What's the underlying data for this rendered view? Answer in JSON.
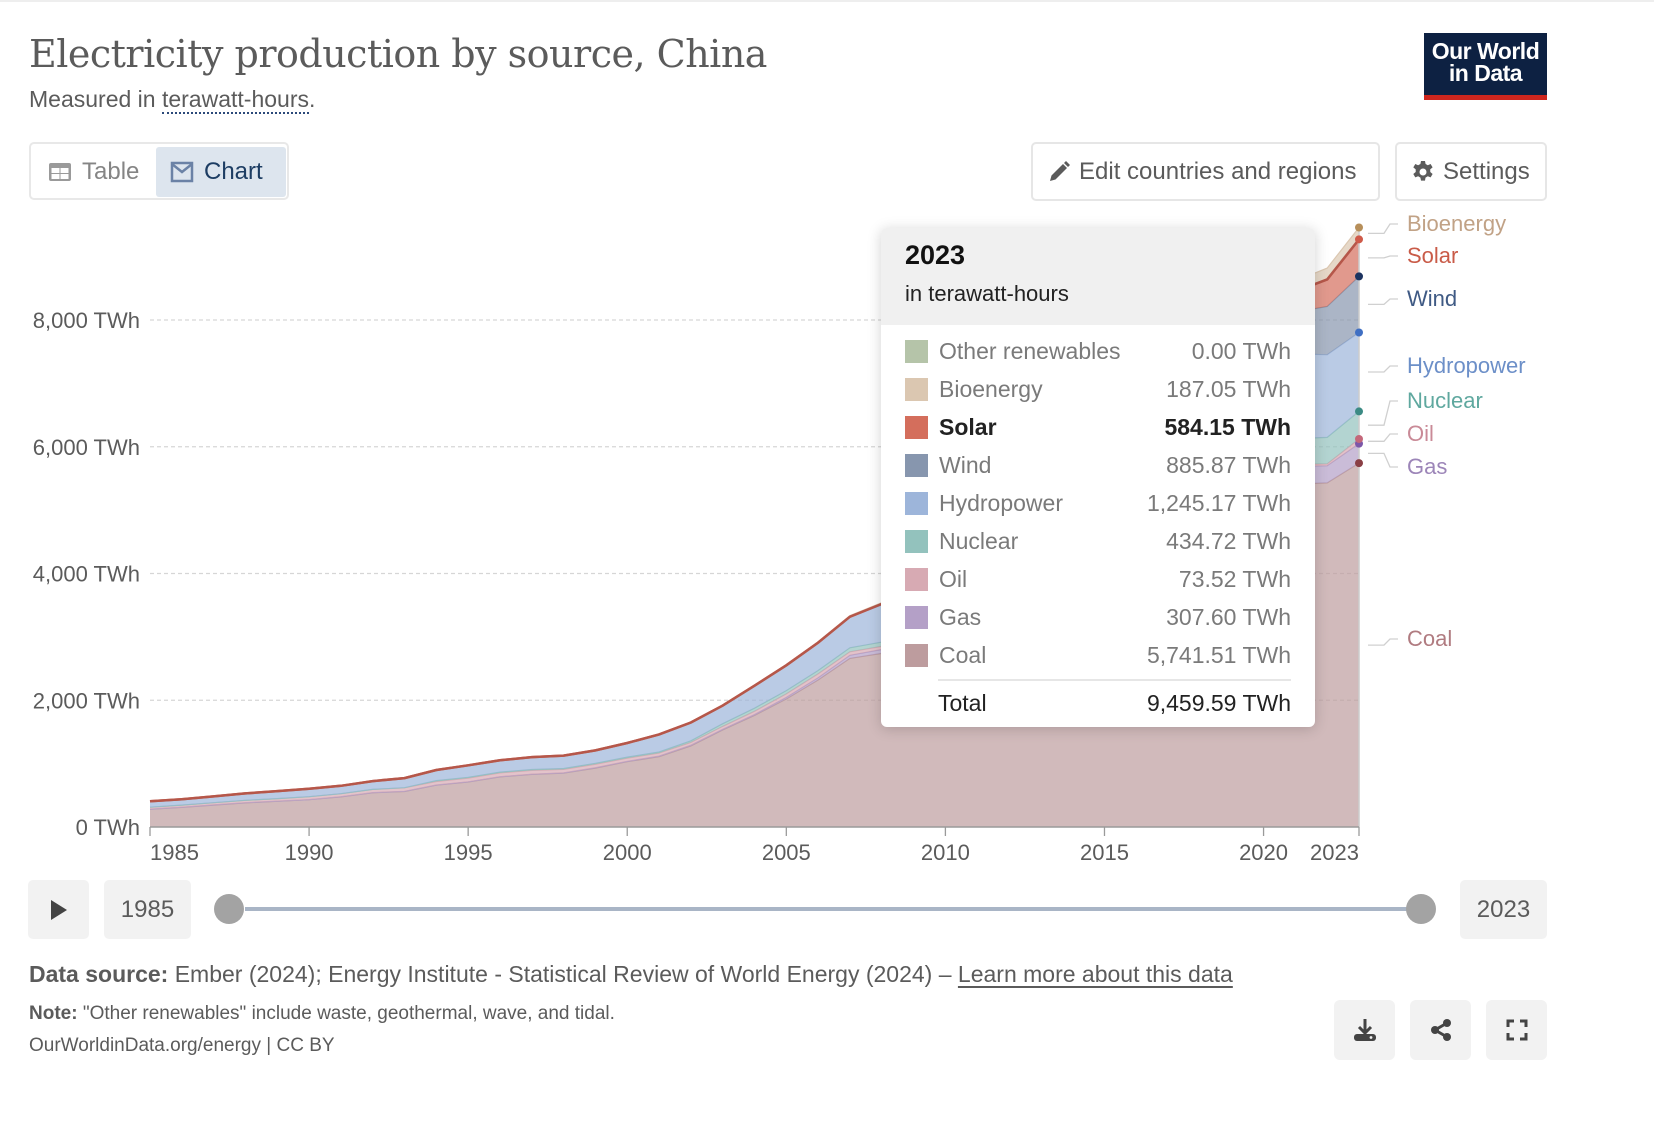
{
  "header": {
    "title": "Electricity production by source, China",
    "subtitle_prefix": "Measured in ",
    "subtitle_unit": "terawatt-hours",
    "subtitle_suffix": ".",
    "logo_line1": "Our World",
    "logo_line2": "in Data"
  },
  "tabs": [
    {
      "label": "Table",
      "icon": "table-icon",
      "active": false
    },
    {
      "label": "Chart",
      "icon": "chart-icon",
      "active": true
    }
  ],
  "controls": {
    "edit_label": "Edit countries and regions",
    "settings_label": "Settings"
  },
  "tooltip": {
    "year": "2023",
    "unit": "in terawatt-hours",
    "rows": [
      {
        "name": "Other renewables",
        "value": "0.00 TWh",
        "color": "#b5c4a9",
        "bold": false
      },
      {
        "name": "Bioenergy",
        "value": "187.05 TWh",
        "color": "#dbc7b1",
        "bold": false
      },
      {
        "name": "Solar",
        "value": "584.15 TWh",
        "color": "#d46e5c",
        "bold": true
      },
      {
        "name": "Wind",
        "value": "885.87 TWh",
        "color": "#8796ae",
        "bold": false
      },
      {
        "name": "Hydropower",
        "value": "1,245.17 TWh",
        "color": "#9db5da",
        "bold": false
      },
      {
        "name": "Nuclear",
        "value": "434.72 TWh",
        "color": "#93c2bd",
        "bold": false
      },
      {
        "name": "Oil",
        "value": "73.52 TWh",
        "color": "#d7aab3",
        "bold": false
      },
      {
        "name": "Gas",
        "value": "307.60 TWh",
        "color": "#b4a0c7",
        "bold": false
      },
      {
        "name": "Coal",
        "value": "5,741.51 TWh",
        "color": "#bd9c9e",
        "bold": false
      }
    ],
    "total_label": "Total",
    "total_value": "9,459.59 TWh"
  },
  "timeline": {
    "start_year": "1985",
    "end_year": "2023",
    "range_start": 1985,
    "range_end": 2023
  },
  "footer": {
    "source_label": "Data source:",
    "source_text": " Ember (2024); Energy Institute - Statistical Review of World Energy (2024) – ",
    "learn_more": "Learn more about this data",
    "note_label": "Note:",
    "note_text": " \"Other renewables\" include waste, geothermal, wave, and tidal.",
    "site": "OurWorldinData.org/energy | CC BY"
  },
  "chart_data": {
    "type": "area",
    "stacked": true,
    "title": "Electricity production by source, China",
    "subtitle": "Measured in terawatt-hours.",
    "xlabel": "",
    "ylabel": "",
    "unit": "TWh",
    "xlim": [
      1985,
      2023
    ],
    "ylim": [
      0,
      9500
    ],
    "x_ticks": [
      "1985",
      "1990",
      "1995",
      "2000",
      "2005",
      "2010",
      "2015",
      "2020",
      "2023"
    ],
    "y_ticks": [
      "0 TWh",
      "2,000 TWh",
      "4,000 TWh",
      "6,000 TWh",
      "8,000 TWh"
    ],
    "y_tick_values": [
      0,
      2000,
      4000,
      6000,
      8000
    ],
    "grid": "horizontal-dashed",
    "legend": "right-inline-labels",
    "x": [
      1985,
      1986,
      1987,
      1988,
      1989,
      1990,
      1991,
      1992,
      1993,
      1994,
      1995,
      1996,
      1997,
      1998,
      1999,
      2000,
      2001,
      2002,
      2003,
      2004,
      2005,
      2006,
      2007,
      2008,
      2009,
      2010,
      2011,
      2012,
      2013,
      2014,
      2015,
      2016,
      2017,
      2018,
      2019,
      2020,
      2021,
      2022,
      2023
    ],
    "series": [
      {
        "name": "Coal",
        "color": "#bd9c9e",
        "label_color": "#b07b80",
        "values": [
          280,
          310,
          345,
          380,
          405,
          430,
          475,
          540,
          560,
          660,
          710,
          790,
          830,
          850,
          930,
          1030,
          1110,
          1280,
          1530,
          1760,
          2020,
          2320,
          2660,
          2740,
          2910,
          3250,
          3720,
          3810,
          4150,
          4210,
          4110,
          4240,
          4500,
          4780,
          4850,
          4920,
          5410,
          5430,
          5741.51
        ]
      },
      {
        "name": "Gas",
        "color": "#b4a0c7",
        "label_color": "#9c85b8",
        "values": [
          3,
          3,
          3,
          3,
          3,
          3,
          3,
          3,
          3,
          3,
          3,
          3,
          3,
          4,
          5,
          6,
          8,
          10,
          12,
          15,
          25,
          35,
          50,
          60,
          70,
          80,
          110,
          120,
          130,
          130,
          180,
          190,
          200,
          220,
          240,
          250,
          280,
          270,
          307.6
        ]
      },
      {
        "name": "Oil",
        "color": "#d7aab3",
        "label_color": "#c98a97",
        "values": [
          30,
          32,
          35,
          38,
          40,
          45,
          48,
          50,
          55,
          55,
          58,
          60,
          60,
          55,
          55,
          50,
          48,
          45,
          45,
          50,
          55,
          60,
          55,
          50,
          45,
          40,
          35,
          30,
          25,
          25,
          25,
          25,
          25,
          25,
          25,
          25,
          30,
          30,
          73.52
        ]
      },
      {
        "name": "Nuclear",
        "color": "#93c2bd",
        "label_color": "#5fa89f",
        "values": [
          0,
          0,
          0,
          0,
          0,
          0,
          0,
          0,
          2,
          14,
          13,
          14,
          14,
          14,
          15,
          17,
          17,
          25,
          43,
          50,
          53,
          55,
          62,
          68,
          70,
          74,
          87,
          98,
          112,
          133,
          171,
          213,
          248,
          295,
          348,
          366,
          408,
          418,
          434.72
        ]
      },
      {
        "name": "Hydropower",
        "color": "#9db5da",
        "label_color": "#6c8fc8",
        "values": [
          92,
          94,
          100,
          109,
          118,
          126,
          124,
          131,
          151,
          167,
          190,
          186,
          196,
          204,
          204,
          222,
          277,
          288,
          284,
          354,
          397,
          436,
          486,
          587,
          616,
          722,
          699,
          872,
          920,
          1064,
          1130,
          1193,
          1194,
          1232,
          1302,
          1355,
          1340,
          1303,
          1245.17
        ]
      },
      {
        "name": "Wind",
        "color": "#8796ae",
        "label_color": "#3f5a84",
        "values": [
          0,
          0,
          0,
          0,
          0,
          0,
          0,
          0,
          0,
          0,
          0,
          0,
          0,
          0,
          0,
          1,
          1,
          1,
          1,
          1,
          2,
          4,
          6,
          15,
          28,
          45,
          70,
          96,
          141,
          156,
          186,
          241,
          295,
          366,
          406,
          467,
          656,
          762,
          885.87
        ]
      },
      {
        "name": "Solar",
        "color": "#d46e5c",
        "label_color": "#c95b48",
        "values": [
          0,
          0,
          0,
          0,
          0,
          0,
          0,
          0,
          0,
          0,
          0,
          0,
          0,
          0,
          0,
          0,
          0,
          0,
          0,
          0,
          0,
          0,
          0,
          0,
          0,
          1,
          3,
          6,
          15,
          29,
          45,
          67,
          118,
          178,
          225,
          261,
          327,
          428,
          584.15
        ]
      },
      {
        "name": "Bioenergy",
        "color": "#dbc7b1",
        "label_color": "#c1a286",
        "values": [
          0,
          0,
          0,
          0,
          0,
          0,
          0,
          0,
          0,
          0,
          0,
          0,
          0,
          0,
          0,
          2,
          2,
          2,
          2,
          2,
          2,
          10,
          15,
          20,
          25,
          30,
          32,
          38,
          45,
          50,
          55,
          65,
          80,
          90,
          112,
          136,
          164,
          178,
          187.05
        ]
      },
      {
        "name": "Other renewables",
        "color": "#b5c4a9",
        "label_color": "#8fa27f",
        "values": [
          0,
          0,
          0,
          0,
          0,
          0,
          0,
          0,
          0,
          0,
          0,
          0,
          0,
          0,
          0,
          0,
          0,
          0,
          0,
          0,
          0,
          0,
          0,
          0,
          0,
          0,
          0,
          0,
          0,
          0,
          0,
          0,
          0,
          0,
          0,
          0,
          0,
          0,
          0
        ]
      }
    ],
    "annotation_year": 2023,
    "right_labels": [
      "Bioenergy",
      "Solar",
      "Wind",
      "Hydropower",
      "Nuclear",
      "Oil",
      "Gas",
      "Coal"
    ]
  }
}
